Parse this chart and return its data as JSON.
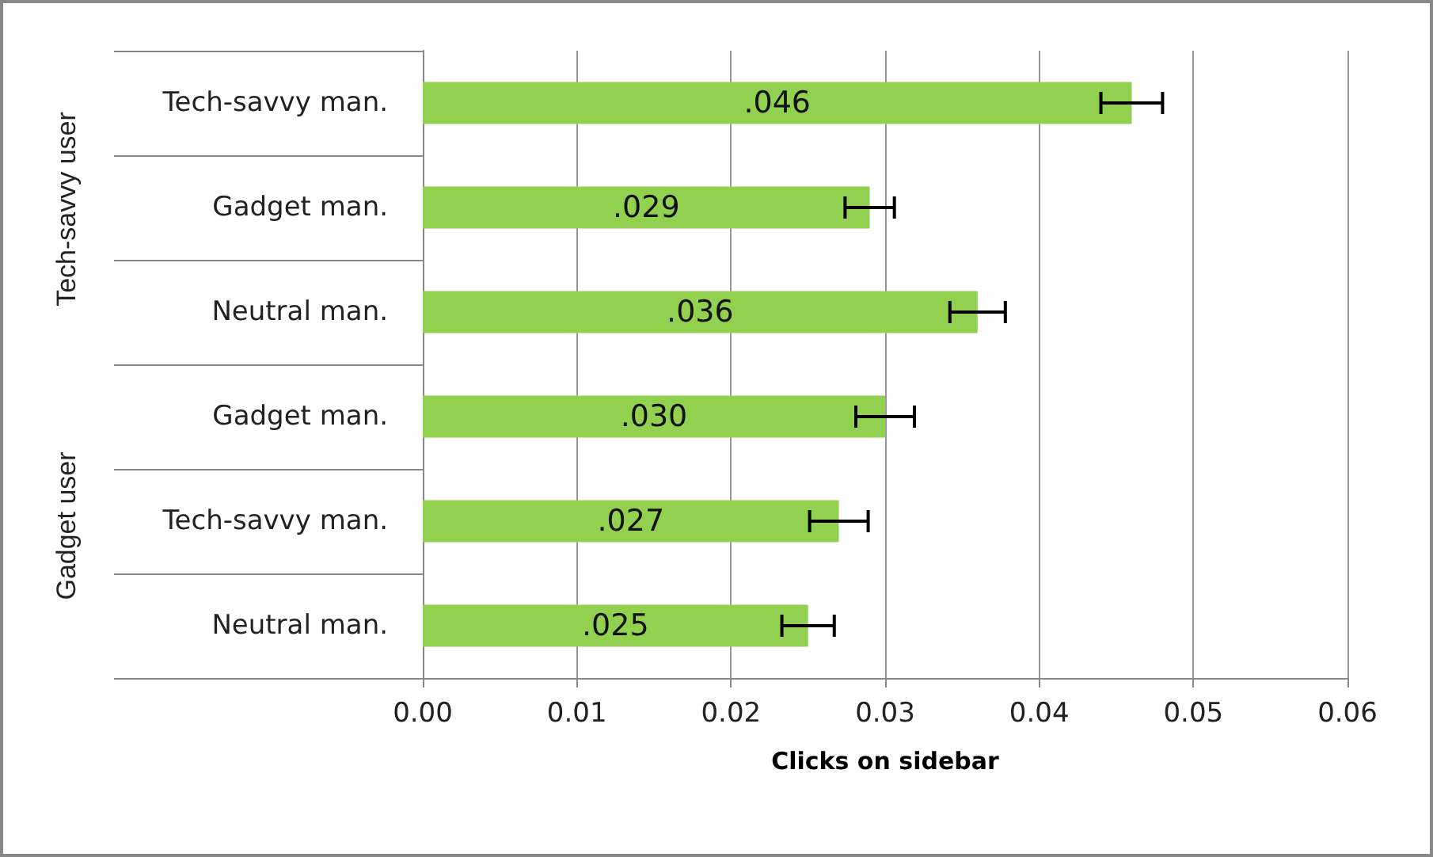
{
  "chart_data": {
    "type": "bar",
    "orientation": "horizontal",
    "categories": [
      "Tech-savvy man.",
      "Gadget man.",
      "Neutral man.",
      "Gadget man.",
      "Tech-savvy man.",
      "Neutral man."
    ],
    "values": [
      0.046,
      0.029,
      0.036,
      0.03,
      0.027,
      0.025
    ],
    "value_labels": [
      ".046",
      ".029",
      ".036",
      ".030",
      ".027",
      ".025"
    ],
    "errors": [
      0.002,
      0.0016,
      0.0018,
      0.0019,
      0.0019,
      0.0017
    ],
    "color": "#92d050",
    "xlabel": "Clicks on sidebar",
    "xlim": [
      0,
      0.06
    ],
    "xticks": [
      {
        "value": 0,
        "label": "0.00"
      },
      {
        "value": 0.01,
        "label": "0.01"
      },
      {
        "value": 0.02,
        "label": "0.02"
      },
      {
        "value": 0.03,
        "label": "0.03"
      },
      {
        "value": 0.04,
        "label": "0.04"
      },
      {
        "value": 0.05,
        "label": "0.05"
      },
      {
        "value": 0.06,
        "label": "0.06"
      }
    ],
    "annotations": [
      "Tech-savvy user",
      "Gadget user"
    ],
    "grid": "x"
  }
}
